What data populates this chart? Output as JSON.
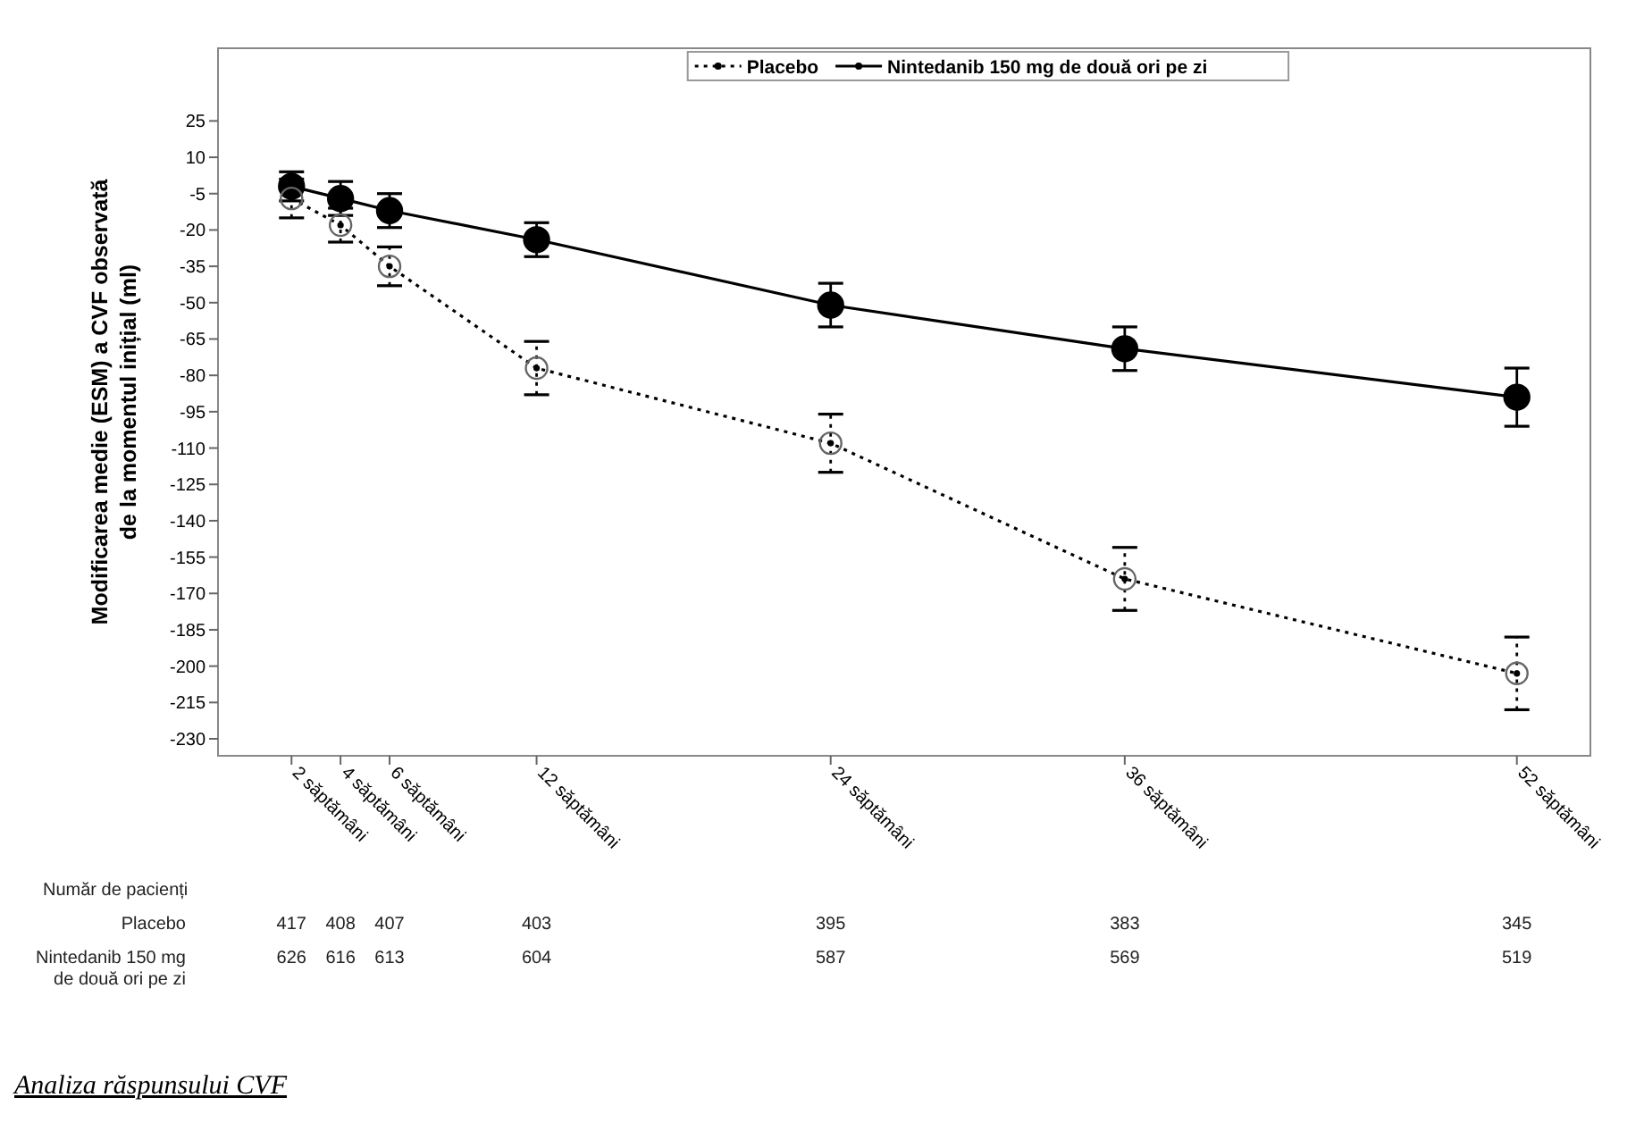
{
  "chart_data": {
    "type": "line",
    "ylabel": "Modificarea medie (ESM) a CVF observată de la momentul inițial (ml)",
    "x": [
      2,
      4,
      6,
      12,
      24,
      36,
      52
    ],
    "xlim": [
      -1,
      55
    ],
    "xticks": [
      {
        "value": 2,
        "label": "2 săptămâni"
      },
      {
        "value": 4,
        "label": "4 săptămâni"
      },
      {
        "value": 6,
        "label": "6 săptămâni"
      },
      {
        "value": 12,
        "label": "12 săptămâni"
      },
      {
        "value": 24,
        "label": "24 săptămâni"
      },
      {
        "value": 36,
        "label": "36 săptămâni"
      },
      {
        "value": 52,
        "label": "52 săptămâni"
      }
    ],
    "ylim": [
      -237,
      55
    ],
    "yticks": [
      25,
      10,
      -5,
      -20,
      -35,
      -50,
      -65,
      -80,
      -95,
      -110,
      -125,
      -140,
      -155,
      -170,
      -185,
      -200,
      -215,
      -230
    ],
    "series": [
      {
        "name": "Placebo",
        "color": "#000000",
        "line_style": "dotted",
        "values": [
          -7,
          -18,
          -35,
          -77,
          -108,
          -164,
          -203
        ],
        "errors": [
          8,
          7,
          8,
          11,
          12,
          13,
          15
        ]
      },
      {
        "name": "Nintedanib 150 mg de două ori pe zi",
        "color": "#000000",
        "line_style": "solid",
        "values": [
          -2,
          -7,
          -12,
          -24,
          -51,
          -69,
          -89
        ],
        "errors": [
          6,
          7,
          7,
          7,
          9,
          9,
          12
        ]
      }
    ],
    "marker": "circle",
    "legend": "top right",
    "grid": false,
    "annotations": [
      "Număr de pacienți",
      "Placebo",
      "417",
      "408",
      "407",
      "403",
      "395",
      "383",
      "345",
      "Nintedanib 150 mg de două ori pe zi",
      "626",
      "616",
      "613",
      "604",
      "587",
      "569",
      "519",
      "Analiza răspunsului CVF"
    ]
  }
}
